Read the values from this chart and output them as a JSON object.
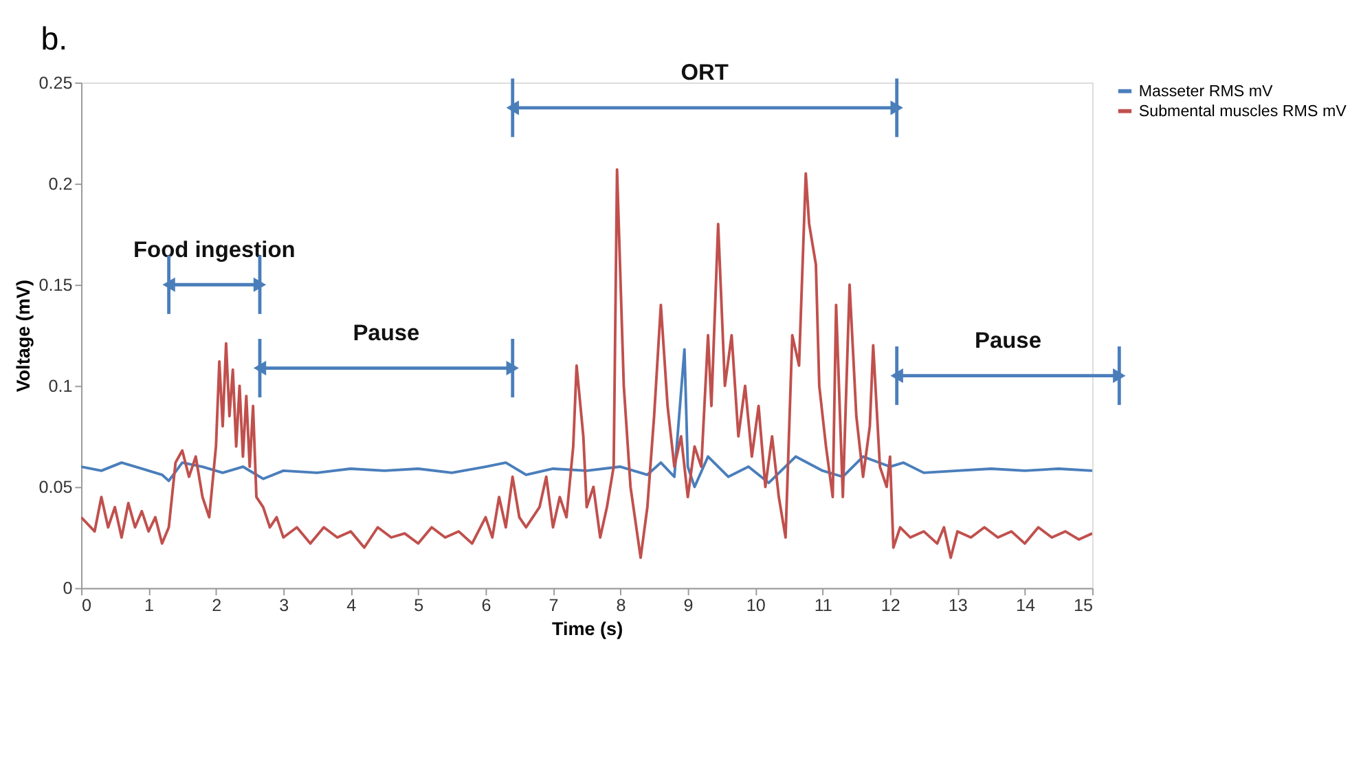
{
  "chart_data": {
    "type": "line",
    "title": "b.",
    "xlabel": "Time (s)",
    "ylabel": "Voltage (mV)",
    "xlim": [
      0,
      15
    ],
    "xticks": [
      0,
      1,
      2,
      3,
      4,
      5,
      6,
      7,
      8,
      9,
      10,
      11,
      12,
      13,
      14,
      15
    ],
    "ylim": [
      0,
      0.25
    ],
    "yticks": [
      0,
      0.05,
      0.1,
      0.15,
      0.2,
      0.25
    ],
    "grid": false,
    "legend": "top right",
    "marker": "none",
    "line_style": "solid",
    "series": [
      {
        "name": "Masseter RMS mV",
        "color": "#4a7ebb",
        "x": [
          0,
          0.3,
          0.6,
          0.9,
          1.2,
          1.3,
          1.5,
          1.8,
          2.1,
          2.4,
          2.7,
          3.0,
          3.5,
          4.0,
          4.5,
          5.0,
          5.5,
          6.0,
          6.3,
          6.6,
          7.0,
          7.5,
          8.0,
          8.4,
          8.6,
          8.8,
          8.95,
          9.0,
          9.1,
          9.3,
          9.6,
          9.9,
          10.2,
          10.6,
          11.0,
          11.3,
          11.6,
          12.0,
          12.2,
          12.5,
          13.0,
          13.5,
          14.0,
          14.5,
          15.0
        ],
        "values": [
          0.06,
          0.058,
          0.062,
          0.059,
          0.056,
          0.053,
          0.062,
          0.06,
          0.057,
          0.06,
          0.054,
          0.058,
          0.057,
          0.059,
          0.058,
          0.059,
          0.057,
          0.06,
          0.062,
          0.056,
          0.059,
          0.058,
          0.06,
          0.056,
          0.062,
          0.055,
          0.118,
          0.06,
          0.05,
          0.065,
          0.055,
          0.06,
          0.052,
          0.065,
          0.058,
          0.055,
          0.065,
          0.06,
          0.062,
          0.057,
          0.058,
          0.059,
          0.058,
          0.059,
          0.058
        ]
      },
      {
        "name": "Submental muscles RMS mV",
        "color": "#c0504d",
        "x": [
          0,
          0.2,
          0.3,
          0.4,
          0.5,
          0.6,
          0.7,
          0.8,
          0.9,
          1.0,
          1.1,
          1.2,
          1.3,
          1.4,
          1.5,
          1.6,
          1.7,
          1.8,
          1.9,
          2.0,
          2.05,
          2.1,
          2.15,
          2.2,
          2.25,
          2.3,
          2.35,
          2.4,
          2.45,
          2.5,
          2.55,
          2.6,
          2.7,
          2.8,
          2.9,
          3.0,
          3.2,
          3.4,
          3.6,
          3.8,
          4.0,
          4.2,
          4.4,
          4.6,
          4.8,
          5.0,
          5.2,
          5.4,
          5.6,
          5.8,
          6.0,
          6.1,
          6.2,
          6.3,
          6.4,
          6.5,
          6.6,
          6.8,
          6.9,
          7.0,
          7.1,
          7.2,
          7.3,
          7.35,
          7.45,
          7.5,
          7.6,
          7.7,
          7.8,
          7.9,
          7.95,
          8.05,
          8.15,
          8.3,
          8.4,
          8.5,
          8.6,
          8.7,
          8.8,
          8.9,
          9.0,
          9.1,
          9.2,
          9.3,
          9.35,
          9.45,
          9.55,
          9.65,
          9.75,
          9.85,
          9.95,
          10.05,
          10.15,
          10.25,
          10.35,
          10.45,
          10.55,
          10.65,
          10.75,
          10.8,
          10.9,
          10.95,
          11.05,
          11.15,
          11.2,
          11.3,
          11.4,
          11.5,
          11.6,
          11.7,
          11.75,
          11.85,
          11.95,
          12.0,
          12.05,
          12.15,
          12.3,
          12.5,
          12.7,
          12.8,
          12.9,
          13.0,
          13.2,
          13.4,
          13.6,
          13.8,
          14.0,
          14.2,
          14.4,
          14.6,
          14.8,
          15.0
        ],
        "values": [
          0.035,
          0.028,
          0.045,
          0.03,
          0.04,
          0.025,
          0.042,
          0.03,
          0.038,
          0.028,
          0.035,
          0.022,
          0.03,
          0.062,
          0.068,
          0.055,
          0.065,
          0.045,
          0.035,
          0.07,
          0.112,
          0.08,
          0.121,
          0.085,
          0.108,
          0.07,
          0.1,
          0.065,
          0.095,
          0.06,
          0.09,
          0.045,
          0.04,
          0.03,
          0.035,
          0.025,
          0.03,
          0.022,
          0.03,
          0.025,
          0.028,
          0.02,
          0.03,
          0.025,
          0.027,
          0.022,
          0.03,
          0.025,
          0.028,
          0.022,
          0.035,
          0.025,
          0.045,
          0.03,
          0.055,
          0.035,
          0.03,
          0.04,
          0.055,
          0.03,
          0.045,
          0.035,
          0.07,
          0.11,
          0.075,
          0.04,
          0.05,
          0.025,
          0.04,
          0.06,
          0.207,
          0.1,
          0.05,
          0.015,
          0.04,
          0.085,
          0.14,
          0.09,
          0.06,
          0.075,
          0.045,
          0.07,
          0.06,
          0.125,
          0.09,
          0.18,
          0.1,
          0.125,
          0.075,
          0.1,
          0.065,
          0.09,
          0.05,
          0.075,
          0.045,
          0.025,
          0.125,
          0.11,
          0.205,
          0.18,
          0.16,
          0.1,
          0.07,
          0.045,
          0.14,
          0.045,
          0.15,
          0.085,
          0.055,
          0.08,
          0.12,
          0.06,
          0.05,
          0.065,
          0.02,
          0.03,
          0.025,
          0.028,
          0.022,
          0.03,
          0.015,
          0.028,
          0.025,
          0.03,
          0.025,
          0.028,
          0.022,
          0.03,
          0.025,
          0.028,
          0.024,
          0.027
        ]
      }
    ],
    "annotations": [
      "Food ingestion",
      "Pause",
      "ORT",
      "Pause"
    ]
  }
}
